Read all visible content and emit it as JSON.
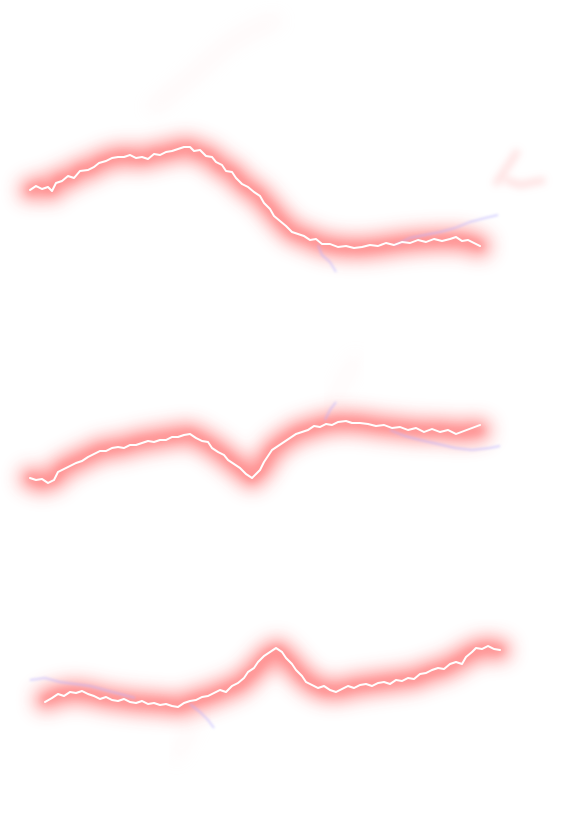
{
  "canvas": {
    "background_color": "#ffffff"
  },
  "theme": {
    "glow_color": "#ff3b3b",
    "core_color": "#ffffff",
    "branch_color": "#b9b2ff"
  },
  "bolts": [
    {
      "name": "lightning-bolt-top"
    },
    {
      "name": "lightning-bolt-middle"
    },
    {
      "name": "lightning-bolt-bottom"
    }
  ]
}
